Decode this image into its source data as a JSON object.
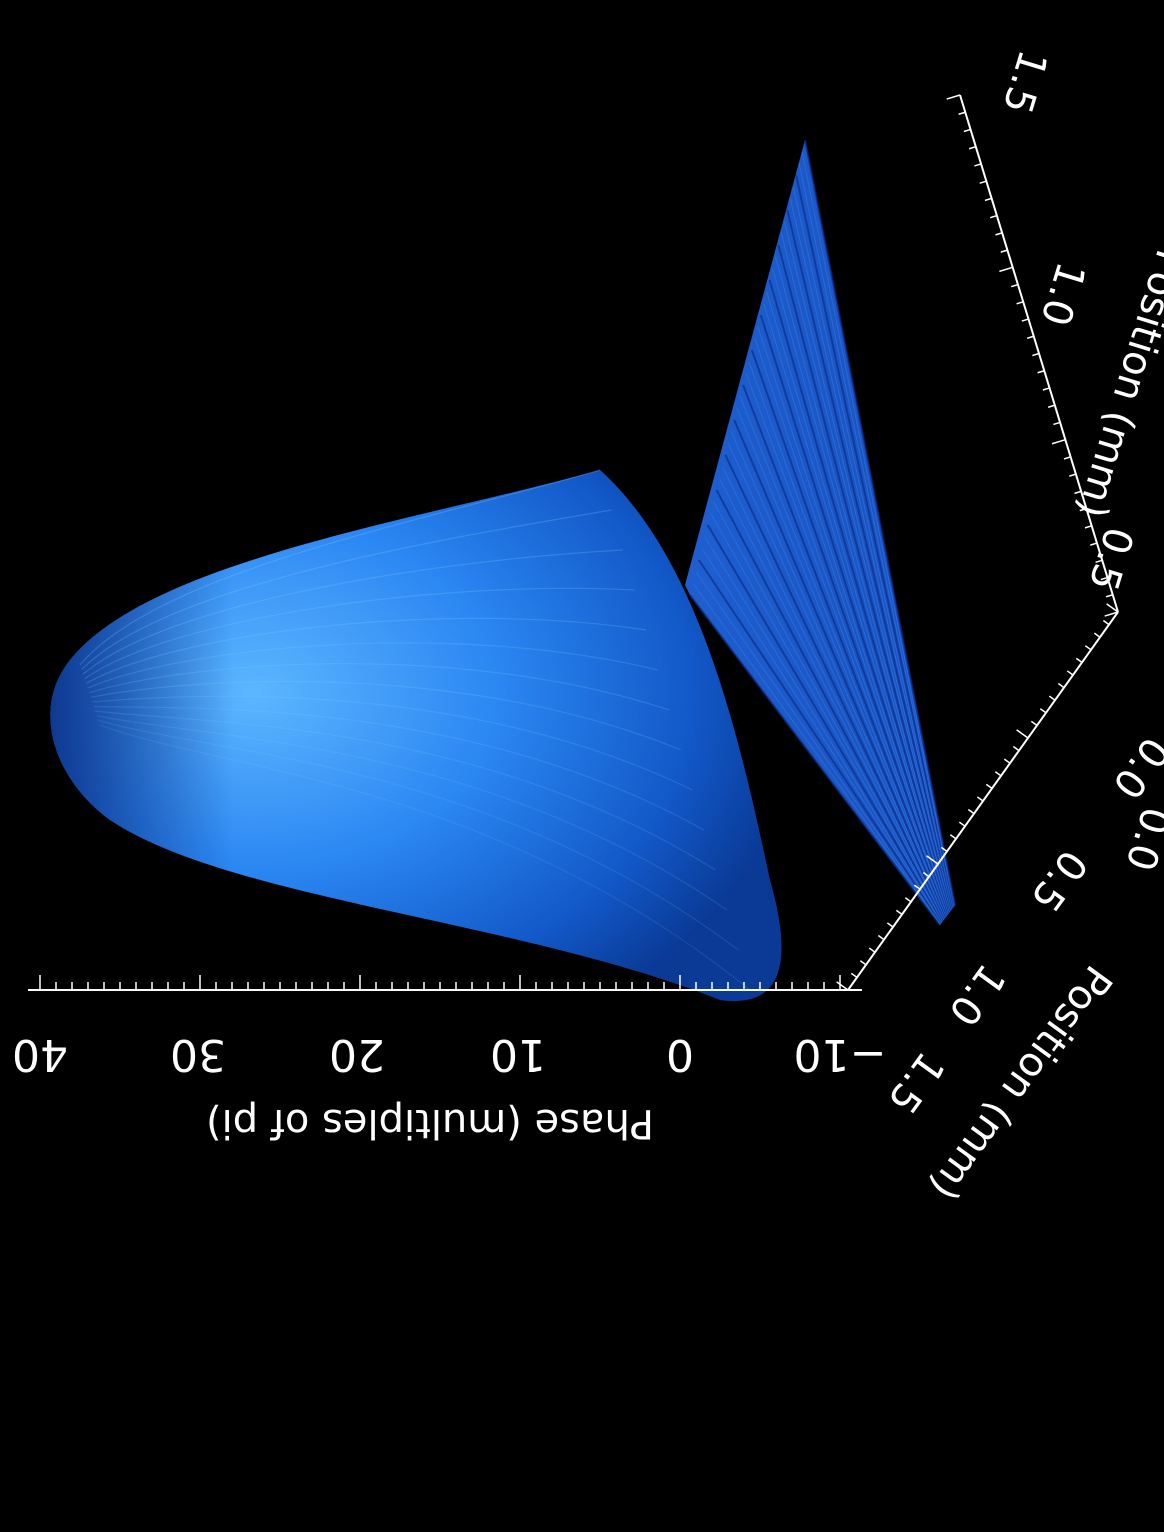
{
  "chart_data": {
    "type": "surface",
    "zlabel": "Phase (multiples of pi)",
    "zticks": [
      "40",
      "30",
      "20",
      "10",
      "0",
      "−10"
    ],
    "zrange": [
      -10,
      40
    ],
    "xlabel": "Position (mm)",
    "xticks": [
      "1.5",
      "1.0",
      "0.5",
      "0.0"
    ],
    "ylabel": "Position (mm)",
    "yticks": [
      "1.5",
      "1.0",
      "0.5",
      "0.0"
    ],
    "surface_peak": 39,
    "surface_base": 0,
    "surface_color": "#1a6fe6",
    "background": "#000000"
  }
}
